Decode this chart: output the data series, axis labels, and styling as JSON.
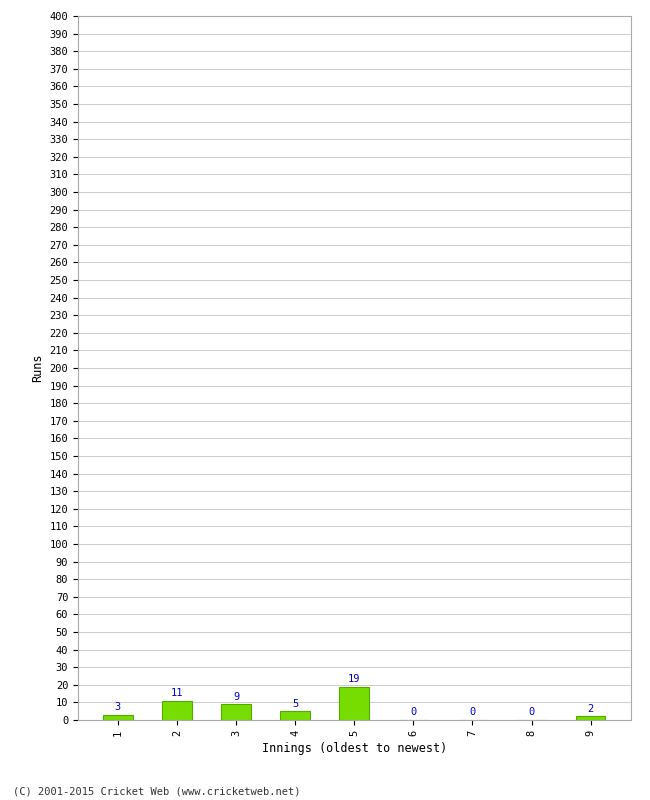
{
  "categories": [
    "1",
    "2",
    "3",
    "4",
    "5",
    "6",
    "7",
    "8",
    "9"
  ],
  "values": [
    3,
    11,
    9,
    5,
    19,
    0,
    0,
    0,
    2
  ],
  "bar_color": "#77dd00",
  "bar_edge_color": "#55aa00",
  "value_color": "#0000cc",
  "xlabel": "Innings (oldest to newest)",
  "ylabel": "Runs",
  "ylim": [
    0,
    400
  ],
  "ytick_step": 10,
  "footer": "(C) 2001-2015 Cricket Web (www.cricketweb.net)",
  "background_color": "#ffffff",
  "grid_color": "#cccccc",
  "tick_fontsize": 7.5,
  "label_fontsize": 8.5
}
